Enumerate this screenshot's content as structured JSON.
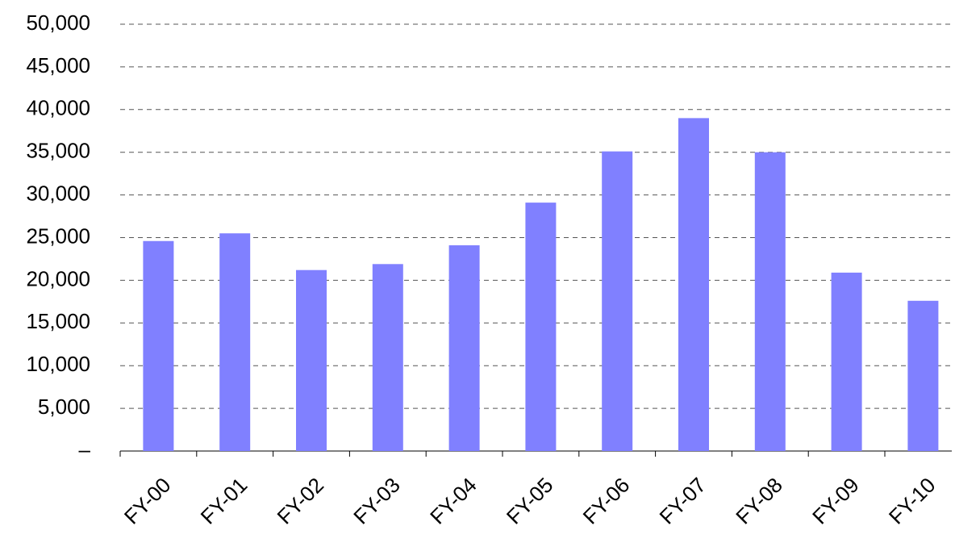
{
  "chart_data": {
    "type": "bar",
    "categories": [
      "FY-00",
      "FY-01",
      "FY-02",
      "FY-03",
      "FY-04",
      "FY-05",
      "FY-06",
      "FY-07",
      "FY-08",
      "FY-09",
      "FY-10"
    ],
    "values": [
      24600,
      25500,
      21200,
      21900,
      24100,
      29100,
      35100,
      39000,
      35000,
      20900,
      17600
    ],
    "color": "#8080ff",
    "ylim": [
      0,
      50000
    ],
    "yticks": [
      {
        "value": 0,
        "label": "–"
      },
      {
        "value": 5000,
        "label": "5,000"
      },
      {
        "value": 10000,
        "label": "10,000"
      },
      {
        "value": 15000,
        "label": "15,000"
      },
      {
        "value": 20000,
        "label": "20,000"
      },
      {
        "value": 25000,
        "label": "25,000"
      },
      {
        "value": 30000,
        "label": "30,000"
      },
      {
        "value": 35000,
        "label": "35,000"
      },
      {
        "value": 40000,
        "label": "40,000"
      },
      {
        "value": 45000,
        "label": "45,000"
      },
      {
        "value": 50000,
        "label": "50,000"
      }
    ],
    "grid": true
  }
}
